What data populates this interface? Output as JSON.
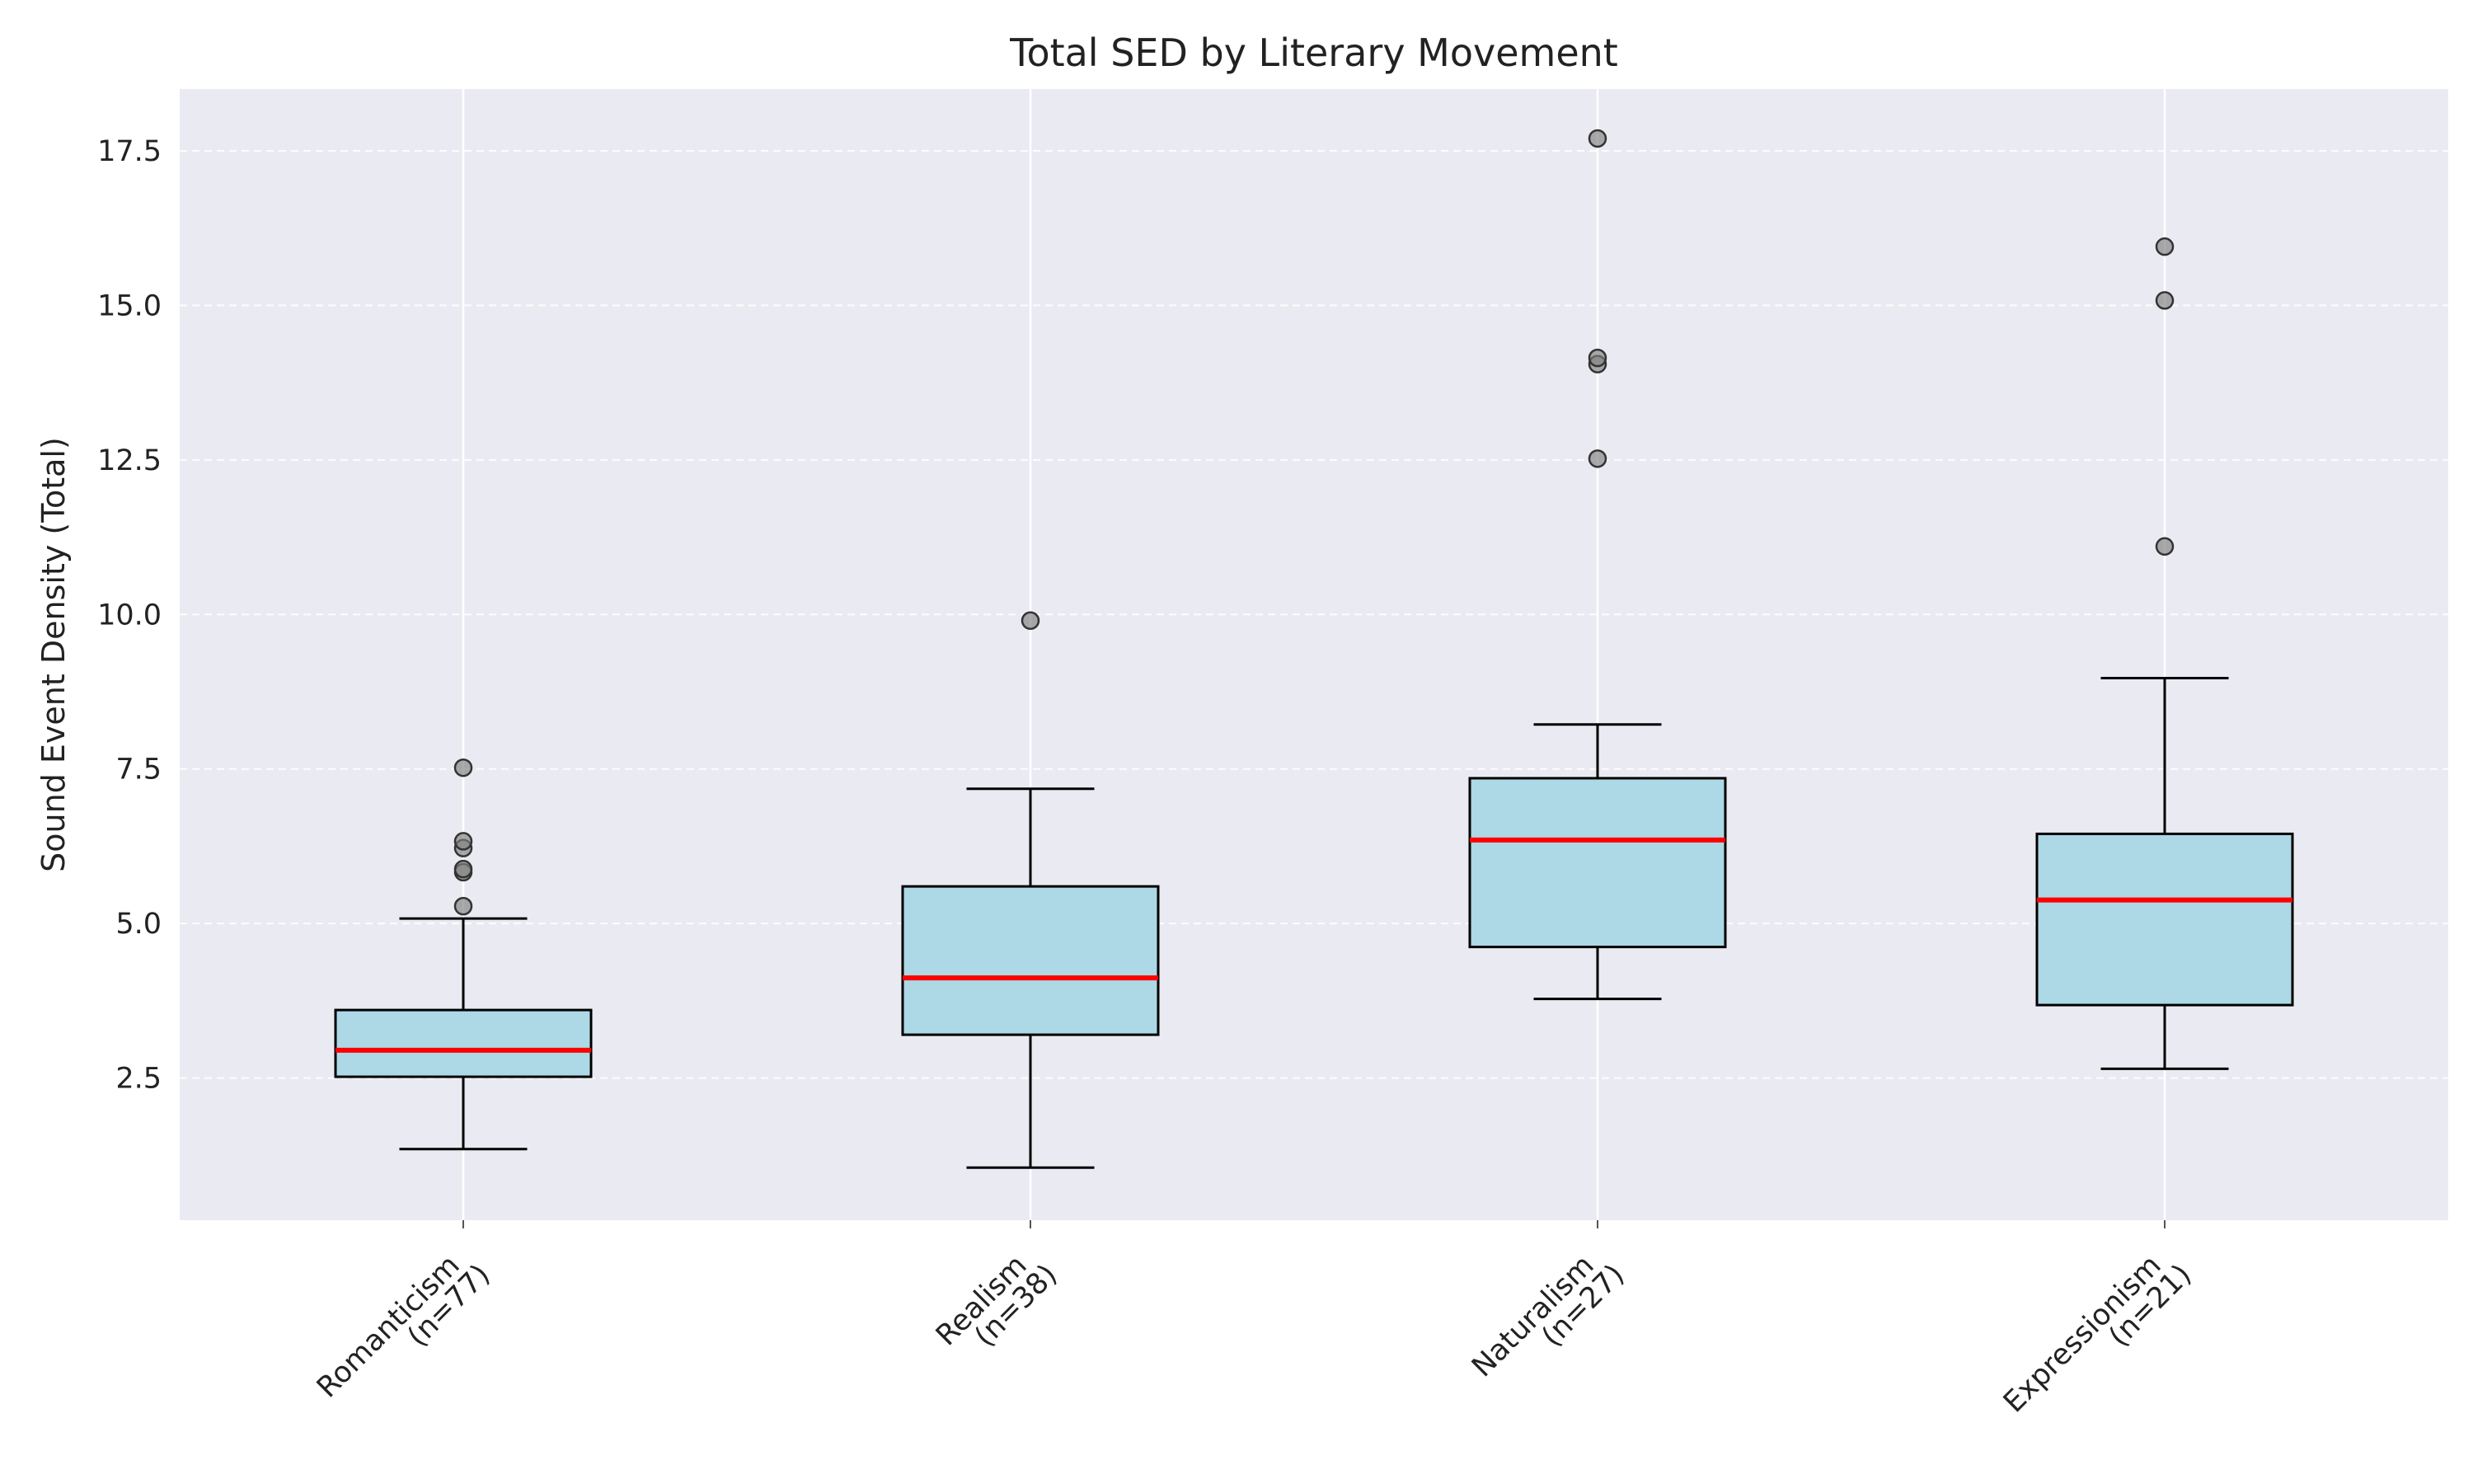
{
  "chart_data": {
    "type": "box",
    "title": "Total SED by Literary Movement",
    "xlabel": "",
    "ylabel": "Sound Event Density (Total)",
    "ylim": [
      0.2,
      18.5
    ],
    "yticks": [
      2.5,
      5.0,
      7.5,
      10.0,
      12.5,
      15.0,
      17.5
    ],
    "ytick_labels": [
      "2.5",
      "5.0",
      "7.5",
      "10.0",
      "12.5",
      "15.0",
      "17.5"
    ],
    "grid": {
      "y": true,
      "x_at_categories": true
    },
    "categories": [
      {
        "name": "Romanticism",
        "n_label": "(n=77)",
        "whisker_low": 1.35,
        "q1": 2.52,
        "median": 2.95,
        "q3": 3.6,
        "whisker_high": 5.08,
        "outliers": [
          5.28,
          5.83,
          5.88,
          6.22,
          6.33,
          7.52
        ]
      },
      {
        "name": "Realism",
        "n_label": "(n=38)",
        "whisker_low": 1.05,
        "q1": 3.2,
        "median": 4.12,
        "q3": 5.6,
        "whisker_high": 7.18,
        "outliers": [
          9.9
        ]
      },
      {
        "name": "Naturalism",
        "n_label": "(n=27)",
        "whisker_low": 3.78,
        "q1": 4.62,
        "median": 6.35,
        "q3": 7.35,
        "whisker_high": 8.22,
        "outliers": [
          12.52,
          14.05,
          14.15,
          17.7
        ]
      },
      {
        "name": "Expressionism",
        "n_label": "(n=21)",
        "whisker_low": 2.65,
        "q1": 3.68,
        "median": 5.38,
        "q3": 6.45,
        "whisker_high": 8.97,
        "outliers": [
          11.1,
          15.08,
          15.95
        ]
      }
    ],
    "colors": {
      "plot_background": "#eaeaf2",
      "box_fill": "#add8e6",
      "box_edge": "#000000",
      "median": "#ff0000",
      "outlier_fill": "#808080",
      "grid": "#ffffff"
    }
  }
}
